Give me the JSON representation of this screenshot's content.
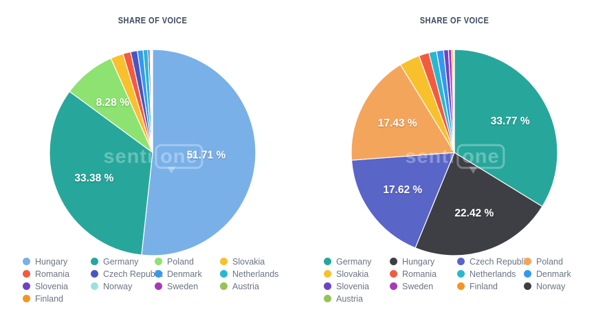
{
  "page": {
    "background": "#ffffff"
  },
  "watermark": {
    "prefix": "senti",
    "suffix": "one"
  },
  "chart_data": [
    {
      "type": "pie",
      "title": "SHARE OF VOICE",
      "legend_position": "bottom",
      "start_angle_deg": 0,
      "direction": "clockwise",
      "slices": [
        {
          "label": "Hungary",
          "value": 51.71,
          "color": "#7ab0e8",
          "data_label": "51.71 %"
        },
        {
          "label": "Germany",
          "value": 33.38,
          "color": "#27a79b",
          "data_label": "33.38 %"
        },
        {
          "label": "Poland",
          "value": 8.28,
          "color": "#8de271",
          "data_label": "8.28 %"
        },
        {
          "label": "Slovakia",
          "value": 2.0,
          "color": "#f9c02d"
        },
        {
          "label": "Romania",
          "value": 1.2,
          "color": "#f35b3f"
        },
        {
          "label": "Czech Republic",
          "value": 1.05,
          "color": "#4a55c0"
        },
        {
          "label": "Denmark",
          "value": 0.9,
          "color": "#3598f0"
        },
        {
          "label": "Netherlands",
          "value": 0.75,
          "color": "#29b7cf"
        },
        {
          "label": "Slovenia",
          "value": 0.3,
          "color": "#6d43c4"
        },
        {
          "label": "Norway",
          "value": 0.18,
          "color": "#99e3df"
        },
        {
          "label": "Sweden",
          "value": 0.12,
          "color": "#a739b7"
        },
        {
          "label": "Austria",
          "value": 0.08,
          "color": "#93c455"
        },
        {
          "label": "Finland",
          "value": 0.05,
          "color": "#f79420"
        }
      ]
    },
    {
      "type": "pie",
      "title": "SHARE OF VOICE",
      "legend_position": "bottom",
      "start_angle_deg": 0,
      "direction": "clockwise",
      "slices": [
        {
          "label": "Germany",
          "value": 33.77,
          "color": "#27a79b",
          "data_label": "33.77 %"
        },
        {
          "label": "Hungary",
          "value": 22.42,
          "color": "#3e3f44",
          "data_label": "22.42 %"
        },
        {
          "label": "Czech Republic",
          "value": 17.62,
          "color": "#5a65c8",
          "data_label": "17.62 %"
        },
        {
          "label": "Poland",
          "value": 17.43,
          "color": "#f4a55c",
          "data_label": "17.43 %"
        },
        {
          "label": "Slovakia",
          "value": 3.18,
          "color": "#f9c02d"
        },
        {
          "label": "Romania",
          "value": 1.6,
          "color": "#f35b3f"
        },
        {
          "label": "Netherlands",
          "value": 1.2,
          "color": "#29b7cf"
        },
        {
          "label": "Denmark",
          "value": 1.1,
          "color": "#3598f0"
        },
        {
          "label": "Slovenia",
          "value": 0.75,
          "color": "#6d43c4"
        },
        {
          "label": "Sweden",
          "value": 0.5,
          "color": "#a739b7"
        },
        {
          "label": "Finland",
          "value": 0.25,
          "color": "#f79420"
        },
        {
          "label": "Norway",
          "value": 0.12,
          "color": "#3e3f44"
        },
        {
          "label": "Austria",
          "value": 0.06,
          "color": "#93c455"
        }
      ]
    }
  ]
}
